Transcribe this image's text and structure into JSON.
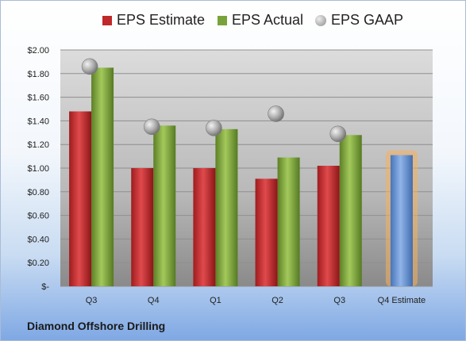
{
  "chart_data": {
    "type": "bar",
    "categories": [
      "Q3",
      "Q4",
      "Q1",
      "Q2",
      "Q3",
      "Q4 Estimate"
    ],
    "series": [
      {
        "name": "EPS Estimate",
        "color": "#c0282b",
        "values": [
          1.48,
          1.0,
          1.0,
          0.91,
          1.02,
          null
        ]
      },
      {
        "name": "EPS Actual",
        "color": "#7aa23a",
        "values": [
          1.85,
          1.36,
          1.33,
          1.09,
          1.28,
          null
        ]
      },
      {
        "name": "EPS GAAP",
        "color": "#9a9a9a",
        "values": [
          1.86,
          1.35,
          1.34,
          1.46,
          1.29,
          null
        ]
      }
    ],
    "estimate_bar": {
      "category": "Q4 Estimate",
      "value": 1.11,
      "color": "#5f8fd0",
      "glow": "#f7b15c"
    },
    "y_tick_labels": [
      "$-",
      "$0.20",
      "$0.40",
      "$0.60",
      "$0.80",
      "$1.00",
      "$1.20",
      "$1.40",
      "$1.60",
      "$1.80",
      "$2.00"
    ],
    "ylim": [
      0,
      2.0
    ],
    "grid": true,
    "legend_position": "top"
  },
  "company_name": "Diamond Offshore Drilling"
}
